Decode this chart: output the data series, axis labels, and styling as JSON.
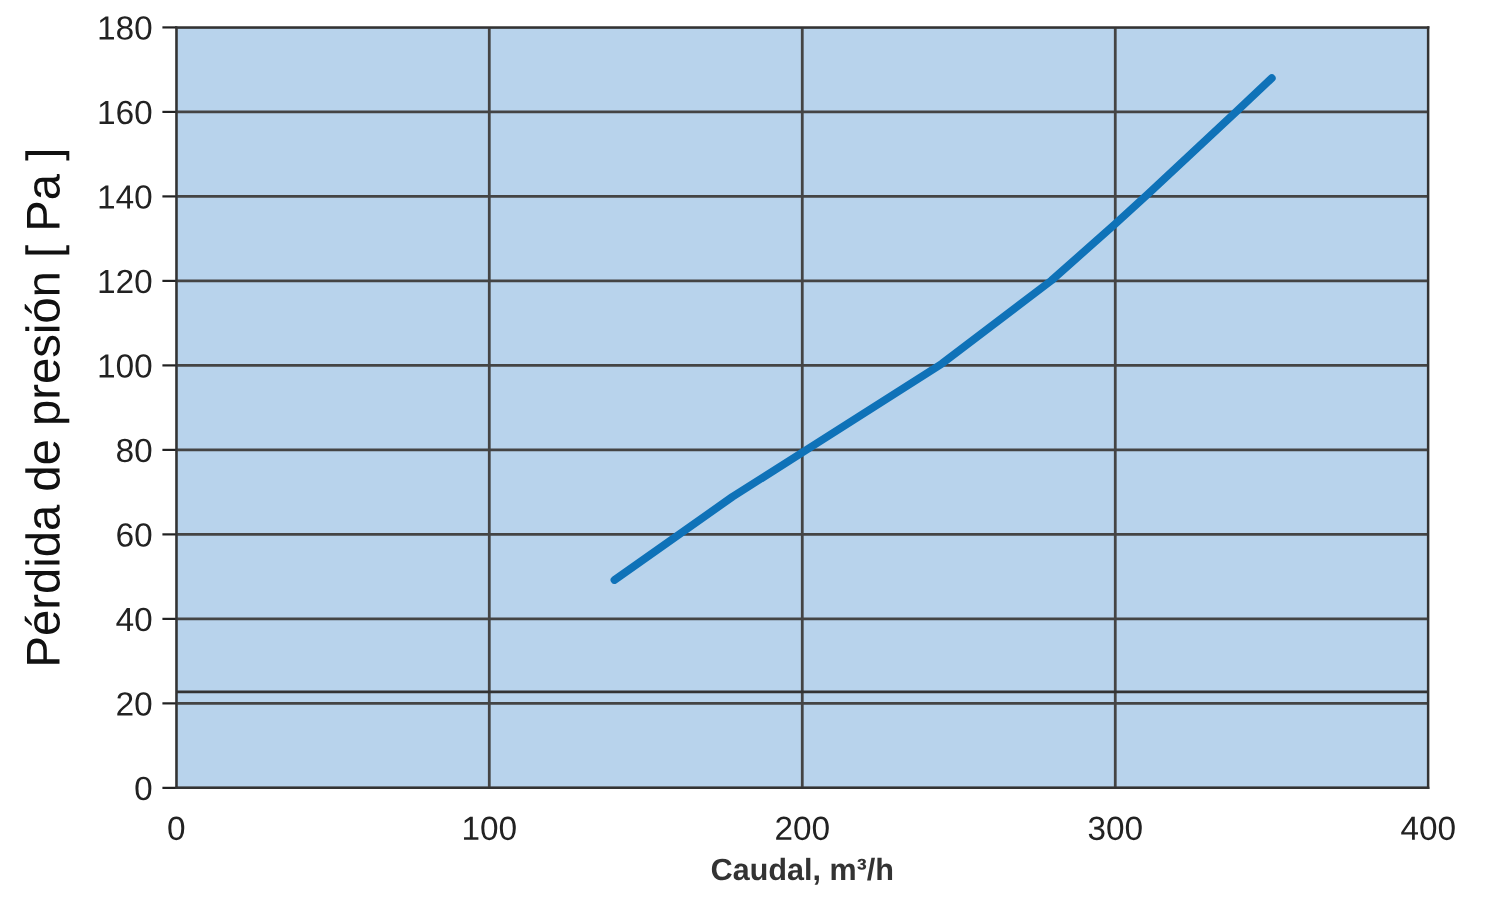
{
  "chart_data": {
    "type": "line",
    "xlabel": "Caudal, m³/h",
    "ylabel": "Pérdida de presión [ Pa ]",
    "x": [
      140,
      177.7,
      200,
      244.6,
      279.6,
      300,
      310.5,
      339,
      350
    ],
    "series": [
      {
        "color": "#0f72b8",
        "values": [
          49.2,
          68.9,
          79.4,
          100.4,
          120.1,
          133.5,
          140.6,
          160.3,
          168
        ]
      }
    ],
    "xlim": [
      0,
      400
    ],
    "ylim": [
      0,
      180
    ],
    "xticks": [
      0,
      100,
      200,
      300,
      400
    ],
    "yticks": [
      0,
      20,
      40,
      60,
      80,
      100,
      120,
      140,
      160,
      180
    ],
    "grid": true,
    "marker": "none",
    "line_style": "solid",
    "ref_lines": [
      {
        "axis": "y",
        "value": 22.7,
        "color": "#333333",
        "line_style": "solid"
      }
    ]
  }
}
